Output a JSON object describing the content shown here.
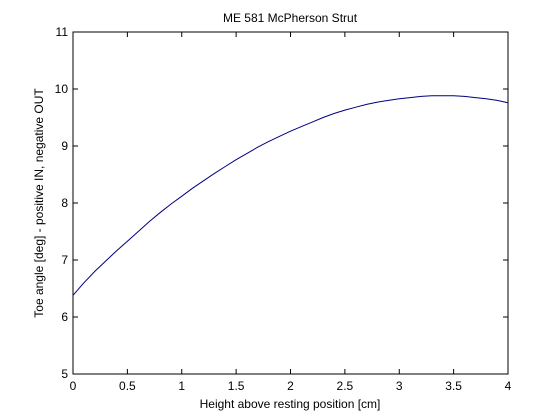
{
  "chart_data": {
    "type": "line",
    "title": "ME 581 McPherson Strut",
    "xlabel": "Height above resting position [cm]",
    "ylabel": "Toe angle [deg] - positive IN, negative OUT",
    "xlim": [
      0,
      4
    ],
    "ylim": [
      5,
      11
    ],
    "xticks": [
      "0",
      "0.5",
      "1",
      "1.5",
      "2",
      "2.5",
      "3",
      "3.5",
      "4"
    ],
    "yticks": [
      "5",
      "6",
      "7",
      "8",
      "9",
      "10",
      "11"
    ],
    "grid": false,
    "legend": "none",
    "line_color": "#000080",
    "series": [
      {
        "x": [
          0,
          0.1,
          0.2,
          0.3,
          0.4,
          0.5,
          0.6,
          0.7,
          0.8,
          0.9,
          1.0,
          1.1,
          1.2,
          1.3,
          1.4,
          1.5,
          1.6,
          1.7,
          1.8,
          1.9,
          2.0,
          2.1,
          2.2,
          2.3,
          2.4,
          2.5,
          2.6,
          2.7,
          2.8,
          2.9,
          3.0,
          3.1,
          3.2,
          3.3,
          3.4,
          3.5,
          3.6,
          3.7,
          3.8,
          3.9,
          4.0
        ],
        "y": [
          6.38,
          6.6,
          6.8,
          6.98,
          7.16,
          7.33,
          7.5,
          7.67,
          7.83,
          7.98,
          8.12,
          8.26,
          8.39,
          8.52,
          8.64,
          8.76,
          8.87,
          8.98,
          9.08,
          9.17,
          9.26,
          9.34,
          9.42,
          9.5,
          9.57,
          9.63,
          9.68,
          9.73,
          9.77,
          9.8,
          9.83,
          9.85,
          9.87,
          9.88,
          9.88,
          9.88,
          9.87,
          9.85,
          9.83,
          9.8,
          9.76
        ]
      }
    ]
  }
}
